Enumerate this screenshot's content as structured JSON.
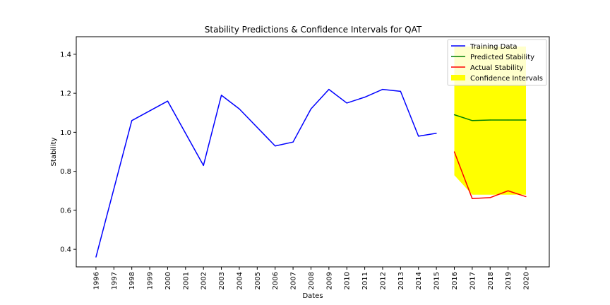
{
  "chart_data": {
    "type": "line",
    "title": "Stability Predictions & Confidence Intervals for QAT",
    "xlabel": "Dates",
    "ylabel": "Stability",
    "x_ticks": [
      "1996",
      "1997",
      "1998",
      "1999",
      "2000",
      "2001",
      "2002",
      "2003",
      "2004",
      "2005",
      "2006",
      "2007",
      "2008",
      "2009",
      "2010",
      "2011",
      "2012",
      "2013",
      "2014",
      "2015",
      "2016",
      "2017",
      "2018",
      "2019",
      "2020"
    ],
    "y_ticks": [
      "0.4",
      "0.6",
      "0.8",
      "1.0",
      "1.2",
      "1.4"
    ],
    "ylim": [
      0.31,
      1.49
    ],
    "xlim": [
      1994.9,
      2021.3
    ],
    "grid": false,
    "legend_position": "top-right",
    "series": [
      {
        "name": "Training Data",
        "color": "#0000ff",
        "x": [
          1996,
          1998,
          2000,
          2002,
          2003,
          2004,
          2006,
          2007,
          2008,
          2009,
          2010,
          2011,
          2012,
          2013,
          2014,
          2015
        ],
        "values": [
          0.36,
          1.06,
          1.16,
          0.83,
          1.19,
          1.12,
          0.93,
          0.95,
          1.12,
          1.22,
          1.15,
          1.18,
          1.22,
          1.21,
          0.98,
          0.995
        ]
      },
      {
        "name": "Predicted Stability",
        "color": "#008000",
        "x": [
          2016,
          2017,
          2018,
          2019,
          2020
        ],
        "values": [
          1.09,
          1.06,
          1.063,
          1.063,
          1.063
        ]
      },
      {
        "name": "Actual Stability",
        "color": "#ff0000",
        "x": [
          2016,
          2017,
          2018,
          2019,
          2020
        ],
        "values": [
          0.9,
          0.66,
          0.665,
          0.7,
          0.67
        ]
      }
    ],
    "confidence_interval": {
      "name": "Confidence Intervals",
      "color": "#ffff00",
      "x": [
        2016,
        2017,
        2018,
        2019,
        2020
      ],
      "upper": [
        1.44,
        1.44,
        1.44,
        1.44,
        1.44
      ],
      "lower": [
        0.78,
        0.68,
        0.68,
        0.68,
        0.68
      ]
    }
  }
}
